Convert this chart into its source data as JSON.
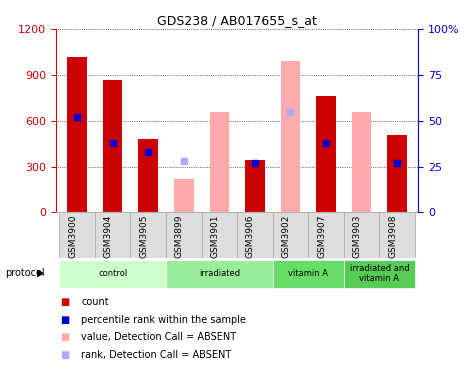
{
  "title": "GDS238 / AB017655_s_at",
  "samples": [
    "GSM3900",
    "GSM3904",
    "GSM3905",
    "GSM3899",
    "GSM3901",
    "GSM3906",
    "GSM3902",
    "GSM3907",
    "GSM3903",
    "GSM3908"
  ],
  "groups": [
    {
      "name": "control",
      "indices": [
        0,
        1,
        2
      ],
      "color": "#ccffcc"
    },
    {
      "name": "irradiated",
      "indices": [
        3,
        4,
        5
      ],
      "color": "#99ee99"
    },
    {
      "name": "vitamin A",
      "indices": [
        6,
        7
      ],
      "color": "#66dd66"
    },
    {
      "name": "irradiated and\nvitamin A",
      "indices": [
        8,
        9
      ],
      "color": "#55cc55"
    }
  ],
  "count": [
    1020,
    870,
    480,
    null,
    null,
    340,
    null,
    760,
    null,
    510
  ],
  "percentile_rank": [
    52,
    38,
    33,
    null,
    null,
    27,
    null,
    38,
    null,
    27
  ],
  "absent_value": [
    null,
    null,
    null,
    215,
    660,
    null,
    990,
    null,
    660,
    null
  ],
  "absent_rank": [
    null,
    null,
    null,
    28,
    null,
    null,
    55,
    null,
    null,
    null
  ],
  "left_ylim": [
    0,
    1200
  ],
  "right_ylim": [
    0,
    100
  ],
  "left_yticks": [
    0,
    300,
    600,
    900,
    1200
  ],
  "right_yticks": [
    0,
    25,
    50,
    75,
    100
  ],
  "right_yticklabels": [
    "0",
    "25",
    "50",
    "75",
    "100%"
  ],
  "bar_width": 0.55,
  "count_color": "#cc0000",
  "percentile_color": "#0000cc",
  "absent_value_color": "#ffaaaa",
  "absent_rank_color": "#aaaaff",
  "grid_color": "#000000",
  "background_color": "#ffffff",
  "plot_bg": "#ffffff",
  "left_tick_color": "#cc0000",
  "right_tick_color": "#0000cc"
}
